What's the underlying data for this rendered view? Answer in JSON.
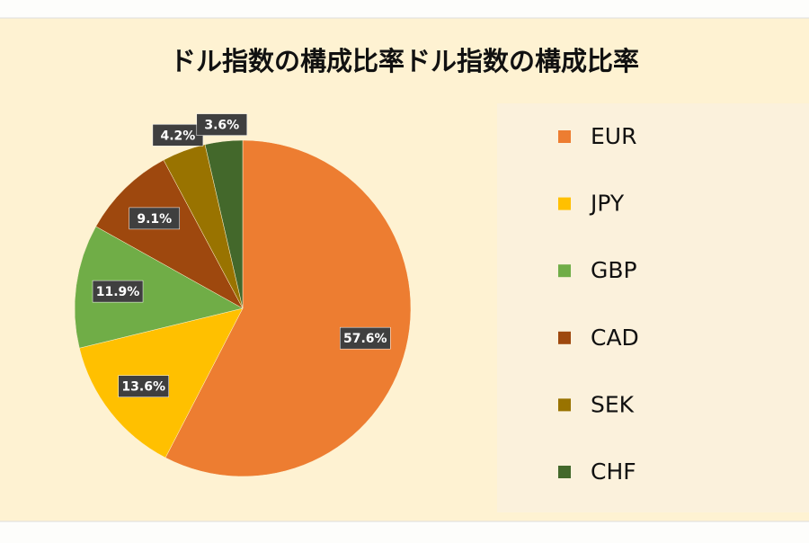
{
  "chart_data": {
    "type": "pie",
    "title": "ドル指数の構成比率ドル指数の構成比率",
    "categories": [
      "EUR",
      "JPY",
      "GBP",
      "CAD",
      "SEK",
      "CHF"
    ],
    "values": [
      57.6,
      13.6,
      11.9,
      9.1,
      4.2,
      3.6
    ],
    "value_labels": [
      "57.6%",
      "13.6%",
      "11.9%",
      "9.1%",
      "4.2%",
      "3.6%"
    ],
    "colors": [
      "#ed7d31",
      "#ffc000",
      "#70ad47",
      "#9e480e",
      "#997300",
      "#43682b"
    ],
    "legend": "right"
  }
}
